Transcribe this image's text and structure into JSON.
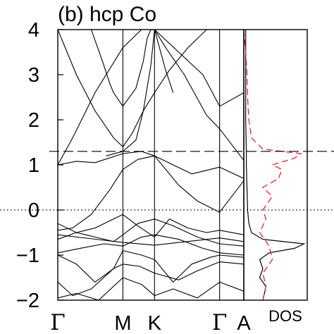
{
  "chart_data": [
    {
      "type": "line",
      "panel_label": "(b) hcp Co",
      "ylabel": "",
      "xlabel": "",
      "ylim": [
        -2,
        4
      ],
      "y_ticks": [
        -2,
        -1,
        0,
        1,
        2,
        3,
        4
      ],
      "y_tick_labels": [
        "−2",
        "−1",
        "0",
        "1",
        "2",
        "3",
        "4"
      ],
      "k_path": [
        {
          "label": "Γ",
          "x": 0.0
        },
        {
          "label": "M",
          "x": 0.35
        },
        {
          "label": "K",
          "x": 0.52
        },
        {
          "label": "Γ",
          "x": 0.87
        },
        {
          "label": "A",
          "x": 1.0
        }
      ],
      "grid": false,
      "reference_lines": [
        {
          "style": "dotted",
          "y": 0
        },
        {
          "style": "dashed",
          "y": 1.3
        }
      ],
      "series": [
        {
          "x": [
            0.0,
            0.35,
            0.52,
            0.87,
            1.0
          ],
          "values": [
            -0.55,
            -0.72,
            -0.78,
            -0.62,
            -0.7
          ]
        },
        {
          "x": [
            0.0,
            0.08,
            0.18,
            0.28,
            0.35,
            0.43,
            0.52,
            0.62,
            0.72,
            0.87,
            1.0
          ],
          "values": [
            -0.45,
            -0.4,
            -0.1,
            0.45,
            0.9,
            1.12,
            1.2,
            1.0,
            0.8,
            0.95,
            0.7
          ]
        },
        {
          "x": [
            0.0,
            0.1,
            0.2,
            0.35,
            0.45,
            0.52,
            0.65,
            0.75,
            0.87,
            1.0
          ],
          "values": [
            1.0,
            1.08,
            1.05,
            1.25,
            1.3,
            1.2,
            0.55,
            0.2,
            -0.05,
            0.65
          ]
        },
        {
          "x": [
            0.0,
            0.1,
            0.2,
            0.3,
            0.35,
            0.43,
            0.52,
            0.6,
            0.7,
            0.8,
            0.87,
            1.0
          ],
          "values": [
            -0.3,
            -0.5,
            -0.4,
            -0.2,
            -0.1,
            -0.35,
            -0.6,
            -0.2,
            -0.4,
            -0.5,
            -0.45,
            -0.55
          ]
        },
        {
          "x": [
            0.0,
            0.1,
            0.2,
            0.3,
            0.35,
            0.43,
            0.52,
            0.62,
            0.75,
            0.87,
            1.0
          ],
          "values": [
            -0.65,
            -0.5,
            -0.6,
            -0.7,
            -0.55,
            -0.3,
            -0.2,
            -0.35,
            -0.6,
            -0.75,
            -0.8
          ]
        },
        {
          "x": [
            0.0,
            0.12,
            0.25,
            0.35,
            0.45,
            0.52,
            0.65,
            0.78,
            0.87,
            1.0
          ],
          "values": [
            -0.95,
            -0.85,
            -0.75,
            -0.8,
            -0.6,
            -0.55,
            -0.65,
            -0.85,
            -0.95,
            -1.0
          ]
        },
        {
          "x": [
            0.0,
            0.1,
            0.2,
            0.3,
            0.35,
            0.45,
            0.52,
            0.62,
            0.72,
            0.82,
            0.87,
            1.0
          ],
          "values": [
            -1.0,
            -1.2,
            -1.6,
            -1.3,
            -0.9,
            -1.0,
            -1.1,
            -1.6,
            -1.2,
            -1.05,
            -1.0,
            -1.05
          ]
        },
        {
          "x": [
            0.0,
            0.08,
            0.18,
            0.3,
            0.35,
            0.44,
            0.52,
            0.65,
            0.75,
            0.87,
            1.0
          ],
          "values": [
            -1.6,
            -1.9,
            -1.75,
            -1.3,
            -1.2,
            -1.25,
            -1.4,
            -1.55,
            -1.35,
            -1.15,
            -1.2
          ]
        },
        {
          "x": [
            0.0,
            0.1,
            0.22,
            0.35,
            0.45,
            0.52,
            0.62,
            0.75,
            0.87,
            1.0
          ],
          "values": [
            -1.95,
            -1.85,
            -2.0,
            -1.5,
            -1.65,
            -1.9,
            -1.75,
            -1.95,
            -1.6,
            -1.8
          ]
        },
        {
          "x": [
            0.0,
            0.08,
            0.2,
            0.35,
            0.45,
            0.52,
            0.65,
            0.78,
            0.87,
            1.0
          ],
          "values": [
            1.0,
            1.6,
            2.6,
            3.6,
            4.0,
            4.0,
            3.5,
            3.0,
            2.3,
            2.6
          ]
        },
        {
          "x": [
            0.0,
            0.1,
            0.2,
            0.3,
            0.35,
            0.4,
            0.46,
            0.52,
            0.6,
            0.7,
            0.8,
            0.87
          ],
          "values": [
            4.0,
            3.0,
            2.2,
            1.6,
            1.4,
            1.7,
            2.2,
            2.6,
            3.1,
            3.6,
            4.0,
            4.0
          ]
        },
        {
          "x": [
            0.26,
            0.35,
            0.42,
            0.46,
            0.5,
            0.52,
            0.58,
            0.68,
            0.8,
            0.87,
            1.0
          ],
          "values": [
            1.2,
            1.3,
            1.55,
            2.2,
            3.2,
            4.0,
            3.6,
            3.0,
            2.1,
            1.8,
            1.1
          ]
        },
        {
          "x": [
            0.18,
            0.24,
            0.28,
            0.3,
            0.35,
            0.42,
            0.46,
            0.48,
            0.5,
            0.52,
            0.58,
            0.62
          ],
          "values": [
            4.0,
            3.3,
            2.8,
            2.6,
            2.3,
            2.7,
            3.3,
            3.8,
            4.0,
            4.0,
            3.1,
            2.6
          ]
        }
      ]
    },
    {
      "type": "line",
      "panel_label": "",
      "xlabel": "DOS",
      "ylim": [
        -2,
        4
      ],
      "series": [
        {
          "style": "solid",
          "y": [
            4.0,
            3.0,
            2.0,
            1.3,
            1.0,
            0.5,
            0.0,
            -0.3,
            -0.5,
            -0.65,
            -0.75,
            -0.85,
            -0.95,
            -1.1,
            -1.3,
            -1.5,
            -1.7,
            -2.0
          ],
          "values": [
            0.03,
            0.03,
            0.03,
            0.04,
            0.04,
            0.05,
            0.06,
            0.08,
            0.12,
            0.3,
            0.95,
            0.8,
            0.4,
            0.25,
            0.3,
            0.25,
            0.35,
            0.3
          ]
        },
        {
          "style": "dashed",
          "y": [
            4.0,
            3.5,
            3.0,
            2.5,
            2.0,
            1.6,
            1.35,
            1.25,
            1.15,
            1.0,
            0.9,
            0.7,
            0.5,
            0.3,
            0.1,
            0.0,
            -0.2,
            -0.5,
            -0.8,
            -1.1,
            -1.4,
            -1.7,
            -2.0
          ],
          "values": [
            0.0,
            0.03,
            0.05,
            0.06,
            0.08,
            0.12,
            0.3,
            0.9,
            0.8,
            0.45,
            0.6,
            0.55,
            0.3,
            0.45,
            0.35,
            0.3,
            0.35,
            0.25,
            0.4,
            0.45,
            0.3,
            0.35,
            0.3
          ]
        }
      ],
      "colors": {
        "solid": "#000000",
        "dashed": "#e8141e"
      }
    }
  ]
}
